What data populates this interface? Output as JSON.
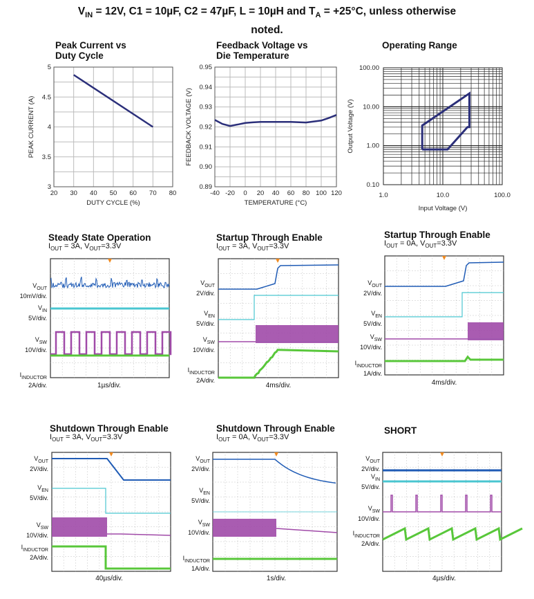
{
  "header": {
    "line1_pre": "V",
    "line1_sub": "IN",
    "line1_post": " = 12V, C1 = 10µF, C2 = 47µF, L = 10µH and T",
    "line1_sub2": "A",
    "line1_post2": " = +25°C, unless otherwise",
    "line2": "noted."
  },
  "chart_data": [
    {
      "type": "line",
      "title": "Peak Current vs Duty Cycle",
      "title_lines": [
        "Peak Current vs",
        "Duty Cycle"
      ],
      "xlabel": "DUTY CYCLE (%)",
      "ylabel": "PEAK CURRENT (A)",
      "xlim": [
        20,
        80
      ],
      "ylim": [
        3,
        5
      ],
      "xticks": [
        "20",
        "30",
        "40",
        "50",
        "60",
        "70",
        "80"
      ],
      "yticks": [
        "3",
        "3.5",
        "4",
        "4.5",
        "5"
      ],
      "grid": true,
      "series": [
        {
          "x": [
            30,
            70
          ],
          "y": [
            4.87,
            4.0
          ]
        }
      ],
      "color": "#2b2f7a"
    },
    {
      "type": "line",
      "title": "Feedback Voltage vs Die Temperature",
      "title_lines": [
        "Feedback Voltage vs",
        "Die Temperature"
      ],
      "xlabel": "TEMPERATURE (°C)",
      "ylabel": "FEEDBACK VOLTAGE (V)",
      "xlim": [
        -40,
        120
      ],
      "ylim": [
        0.89,
        0.95
      ],
      "xticks": [
        "-40",
        "-20",
        "0",
        "20",
        "40",
        "60",
        "80",
        "100",
        "120"
      ],
      "yticks": [
        "0.89",
        "0.90",
        "0.91",
        "0.92",
        "0.93",
        "0.94",
        "0.95"
      ],
      "grid": true,
      "series": [
        {
          "x": [
            -40,
            -30,
            -20,
            -10,
            0,
            10,
            20,
            40,
            60,
            80,
            100,
            110,
            120
          ],
          "y": [
            0.9235,
            0.9215,
            0.9205,
            0.9212,
            0.922,
            0.9223,
            0.9225,
            0.9225,
            0.9225,
            0.9222,
            0.9232,
            0.9245,
            0.926
          ]
        }
      ],
      "color": "#2b2f7a"
    },
    {
      "type": "line",
      "title": "Operating Range",
      "xlabel": "Input Voltage (V)",
      "ylabel": "Output Voltage (V)",
      "xscale": "log",
      "yscale": "log",
      "xlim": [
        1,
        100
      ],
      "ylim": [
        0.1,
        100
      ],
      "xticks": [
        "1.0",
        "10.0",
        "100.0"
      ],
      "yticks": [
        "0.10",
        "1.00",
        "10.00",
        "100.00"
      ],
      "grid": true,
      "series": [
        {
          "x": [
            4.5,
            4.5,
            28,
            28,
            26,
            12,
            4.5
          ],
          "y": [
            0.8,
            3.3,
            22,
            3.0,
            3.0,
            0.8,
            0.8
          ]
        }
      ],
      "color": "#2b2f7a"
    }
  ],
  "scopes": [
    {
      "title": "Steady State Operation",
      "cond": {
        "i": "I",
        "i_sub": "OUT",
        "i_val": " = 3A, ",
        "v": "V",
        "v_sub": "OUT",
        "v_val": "=3.3V"
      },
      "timebase": "1µs/div.",
      "channels": [
        {
          "name": "V",
          "sub": "OUT",
          "scale": "10mV/div.",
          "color": "#1f5bb5"
        },
        {
          "name": "V",
          "sub": "IN",
          "scale": "5V/div.",
          "color": "#49c6d0"
        },
        {
          "name": "V",
          "sub": "SW",
          "scale": "10V/div.",
          "color": "#a04aa8"
        },
        {
          "name": "I",
          "sub": "INDUCTOR",
          "scale": "2A/div.",
          "color": "#58c73a"
        }
      ]
    },
    {
      "title": "Startup Through Enable",
      "cond": {
        "i": "I",
        "i_sub": "OUT",
        "i_val": " = 3A, ",
        "v": "V",
        "v_sub": "OUT",
        "v_val": "=3.3V"
      },
      "timebase": "4ms/div.",
      "channels": [
        {
          "name": "V",
          "sub": "OUT",
          "scale": "2V/div.",
          "color": "#1f5bb5"
        },
        {
          "name": "V",
          "sub": "EN",
          "scale": "5V/div.",
          "color": "#49c6d0"
        },
        {
          "name": "V",
          "sub": "SW",
          "scale": "10V/div.",
          "color": "#a04aa8"
        },
        {
          "name": "I",
          "sub": "INDUCTOR",
          "scale": "2A/div.",
          "color": "#58c73a"
        }
      ]
    },
    {
      "title": "Startup Through Enable",
      "cond": {
        "i": "I",
        "i_sub": "OUT",
        "i_val": " = 0A, ",
        "v": "V",
        "v_sub": "OUT",
        "v_val": "=3.3V"
      },
      "timebase": "4ms/div.",
      "channels": [
        {
          "name": "V",
          "sub": "OUT",
          "scale": "2V/div.",
          "color": "#1f5bb5"
        },
        {
          "name": "V",
          "sub": "EN",
          "scale": "5V/div.",
          "color": "#49c6d0"
        },
        {
          "name": "V",
          "sub": "SW",
          "scale": "10V/div.",
          "color": "#a04aa8"
        },
        {
          "name": "I",
          "sub": "INDUCTOR",
          "scale": "1A/div.",
          "color": "#58c73a"
        }
      ]
    },
    {
      "title": "Shutdown Through Enable",
      "cond": {
        "i": "I",
        "i_sub": "OUT",
        "i_val": " = 3A, ",
        "v": "V",
        "v_sub": "OUT",
        "v_val": "=3.3V"
      },
      "timebase": "40µs/div.",
      "channels": [
        {
          "name": "V",
          "sub": "OUT",
          "scale": "2V/div.",
          "color": "#1f5bb5"
        },
        {
          "name": "V",
          "sub": "EN",
          "scale": "5V/div.",
          "color": "#49c6d0"
        },
        {
          "name": "V",
          "sub": "SW",
          "scale": "10V/div.",
          "color": "#a04aa8"
        },
        {
          "name": "I",
          "sub": "INDUCTOR",
          "scale": "2A/div.",
          "color": "#58c73a"
        }
      ]
    },
    {
      "title": "Shutdown Through Enable",
      "cond": {
        "i": "I",
        "i_sub": "OUT",
        "i_val": " = 0A, ",
        "v": "V",
        "v_sub": "OUT",
        "v_val": "=3.3V"
      },
      "timebase": "1s/div.",
      "channels": [
        {
          "name": "V",
          "sub": "OUT",
          "scale": "2V/div.",
          "color": "#1f5bb5"
        },
        {
          "name": "V",
          "sub": "EN",
          "scale": "5V/div.",
          "color": "#49c6d0"
        },
        {
          "name": "V",
          "sub": "SW",
          "scale": "10V/div.",
          "color": "#a04aa8"
        },
        {
          "name": "I",
          "sub": "INDUCTOR",
          "scale": "1A/div.",
          "color": "#58c73a"
        }
      ]
    },
    {
      "title": "SHORT",
      "cond": null,
      "timebase": "4µs/div.",
      "channels": [
        {
          "name": "V",
          "sub": "OUT",
          "scale": "2V/div.",
          "color": "#1f5bb5"
        },
        {
          "name": "V",
          "sub": "IN",
          "scale": "5V/div.",
          "color": "#49c6d0"
        },
        {
          "name": "V",
          "sub": "SW",
          "scale": "10V/div.",
          "color": "#a04aa8"
        },
        {
          "name": "I",
          "sub": "INDUCTOR",
          "scale": "2A/div.",
          "color": "#58c73a"
        }
      ]
    }
  ]
}
